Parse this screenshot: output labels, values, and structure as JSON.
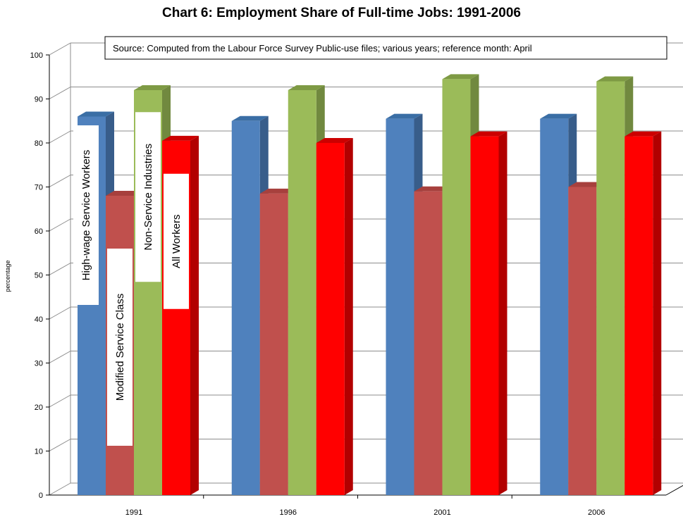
{
  "chart_data": {
    "type": "bar",
    "title": "Chart 6: Employment Share of Full-time Jobs: 1991-2006",
    "subtitle": "Source: Computed from the Labour Force Survey Public-use files; various years; reference month: April",
    "xlabel": "",
    "ylabel": "percentage",
    "ylim": [
      0,
      100
    ],
    "yticks": [
      0,
      10,
      20,
      30,
      40,
      50,
      60,
      70,
      80,
      90,
      100
    ],
    "categories": [
      "1991",
      "1996",
      "2001",
      "2006"
    ],
    "grid": true,
    "three_d": true,
    "legend": "inline vertical labels on 1991 bars",
    "series": [
      {
        "name": "High-wage Service Workers",
        "values": [
          86,
          85,
          85.5,
          85.5
        ],
        "color": "#4F81BD",
        "top_color": "#3A6EA5",
        "side_color": "#385D8A"
      },
      {
        "name": "Modified Service Class",
        "values": [
          68,
          68.5,
          69,
          70
        ],
        "color": "#C0504D",
        "top_color": "#A7403D",
        "side_color": "#8C3836"
      },
      {
        "name": "Non-Service Industries",
        "values": [
          92,
          92,
          94.5,
          94
        ],
        "color": "#9BBB59",
        "top_color": "#7E9A44",
        "side_color": "#71893F"
      },
      {
        "name": "All Workers",
        "values": [
          80.5,
          80,
          81.5,
          81.5
        ],
        "color": "#FF0000",
        "top_color": "#CC0000",
        "side_color": "#B20000"
      }
    ]
  }
}
